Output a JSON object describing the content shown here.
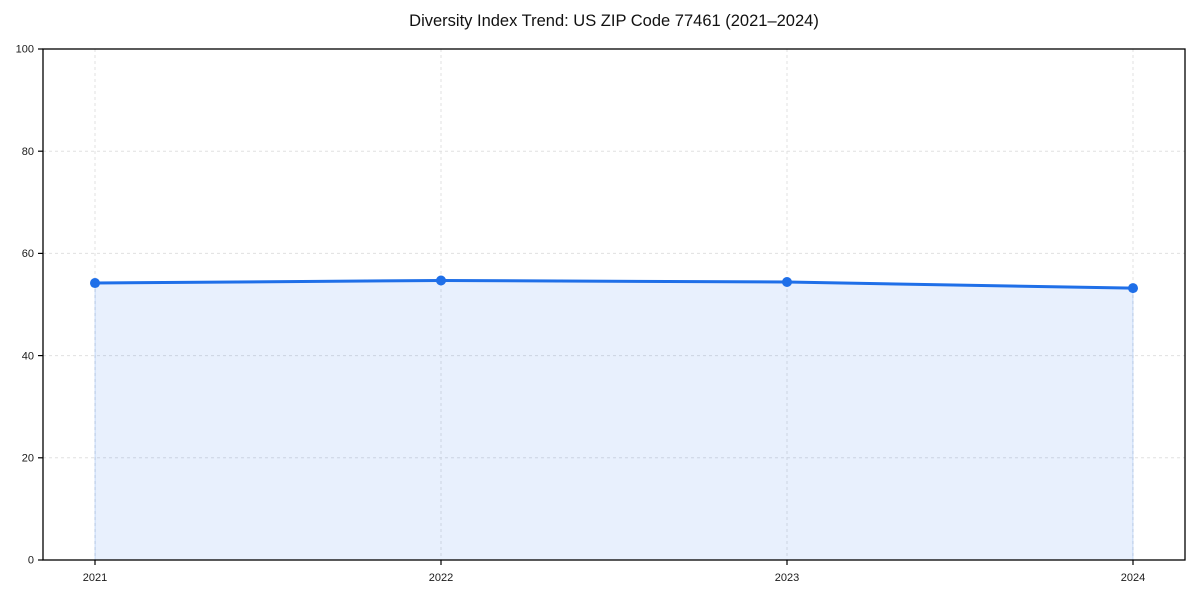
{
  "chart_data": {
    "type": "line",
    "title": "Diversity Index Trend: US ZIP Code 77461 (2021–2024)",
    "categories": [
      "2021",
      "2022",
      "2023",
      "2024"
    ],
    "series": [
      {
        "name": "Diversity Index",
        "values": [
          54.2,
          54.7,
          54.4,
          53.2
        ]
      }
    ],
    "xlabel": "",
    "ylabel": "",
    "ylim": [
      0,
      100
    ],
    "yticks": [
      0,
      20,
      40,
      60,
      80,
      100
    ],
    "grid": true,
    "grid_style": "dashed",
    "legend": "none",
    "marker": "circle",
    "area_fill": true,
    "colors": {
      "line": "#1f6fe8",
      "marker": "#1f6fe8",
      "area_fill": "rgba(31,111,232,0.10)",
      "area_edge": "rgba(31,111,232,0.20)",
      "grid": "#e0e0e0",
      "spine": "#000000",
      "tick_label": "#1a1a1a",
      "background": "#ffffff"
    }
  }
}
